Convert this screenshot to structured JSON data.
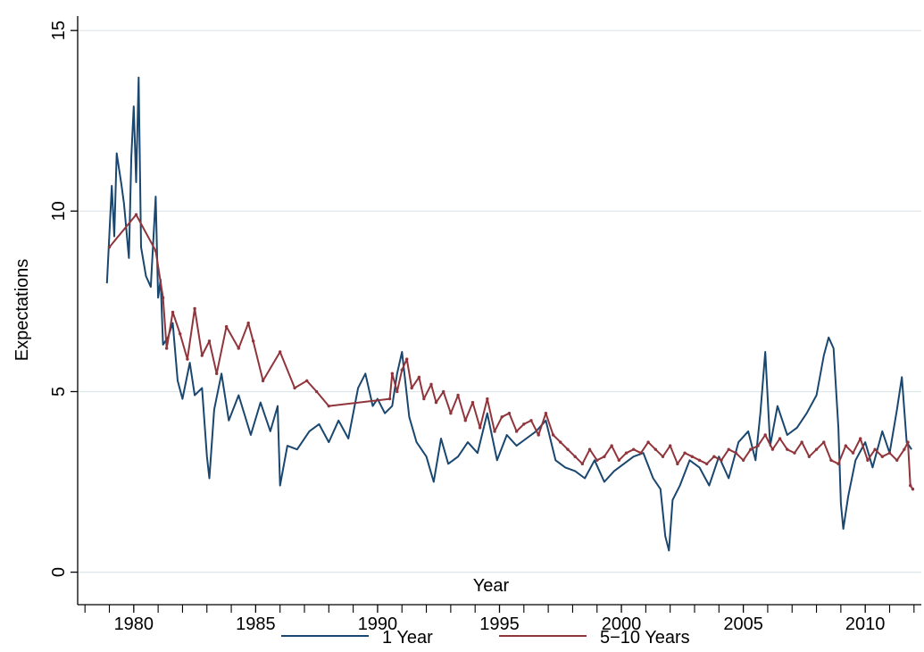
{
  "chart_data": {
    "type": "line",
    "xlabel": "Year",
    "ylabel": "Expectations",
    "xlim": [
      1977.7,
      2012.3
    ],
    "ylim": [
      -0.9,
      15.4
    ],
    "x_ticks": [
      1980,
      1985,
      1990,
      1995,
      2000,
      2005,
      2010
    ],
    "x_tick_labels": [
      "1980",
      "1985",
      "1990",
      "1995",
      "2000",
      "2005",
      "2010"
    ],
    "x_minor_ticks": [
      1978,
      1979,
      1981,
      1982,
      1983,
      1984,
      1986,
      1987,
      1988,
      1989,
      1991,
      1992,
      1993,
      1994,
      1996,
      1997,
      1998,
      1999,
      2001,
      2002,
      2003,
      2004,
      2006,
      2007,
      2008,
      2009,
      2011,
      2012
    ],
    "y_ticks": [
      0,
      5,
      10,
      15
    ],
    "y_tick_labels": [
      "0",
      "5",
      "10",
      "15"
    ],
    "grid": "horizontal",
    "legend_position": "bottom",
    "colors": {
      "one_year": "#1a476f",
      "five_ten_years": "#90353b",
      "grid": "#dde6ea"
    },
    "series": [
      {
        "name": "1 Year",
        "x": [
          1978.9,
          1979.1,
          1979.2,
          1979.3,
          1979.5,
          1979.6,
          1979.8,
          1979.9,
          1980.0,
          1980.1,
          1980.2,
          1980.3,
          1980.5,
          1980.7,
          1980.9,
          1981.0,
          1981.1,
          1981.2,
          1981.4,
          1981.6,
          1981.8,
          1982.0,
          1982.3,
          1982.5,
          1982.8,
          1983.0,
          1983.1,
          1983.3,
          1983.6,
          1983.9,
          1984.3,
          1984.8,
          1985.2,
          1985.6,
          1985.9,
          1986.0,
          1986.3,
          1986.7,
          1987.2,
          1987.6,
          1988.0,
          1988.4,
          1988.8,
          1989.2,
          1989.5,
          1989.8,
          1990.0,
          1990.3,
          1990.6,
          1990.8,
          1991.0,
          1991.3,
          1991.6,
          1992.0,
          1992.3,
          1992.6,
          1992.9,
          1993.3,
          1993.7,
          1994.1,
          1994.5,
          1994.9,
          1995.3,
          1995.7,
          1996.1,
          1996.5,
          1996.9,
          1997.3,
          1997.7,
          1998.1,
          1998.5,
          1998.9,
          1999.3,
          1999.7,
          2000.1,
          2000.5,
          2000.9,
          2001.3,
          2001.6,
          2001.8,
          2001.95,
          2002.1,
          2002.4,
          2002.8,
          2003.2,
          2003.6,
          2004.0,
          2004.4,
          2004.8,
          2005.2,
          2005.5,
          2005.7,
          2005.9,
          2006.1,
          2006.4,
          2006.8,
          2007.2,
          2007.6,
          2008.0,
          2008.3,
          2008.5,
          2008.7,
          2008.9,
          2009.0,
          2009.1,
          2009.3,
          2009.6,
          2010.0,
          2010.3,
          2010.7,
          2011.0,
          2011.3,
          2011.5,
          2011.7,
          2011.9
        ],
        "values": [
          8.0,
          10.7,
          9.3,
          11.6,
          10.7,
          10.2,
          8.7,
          11.5,
          12.9,
          10.8,
          13.7,
          9.0,
          8.2,
          7.9,
          10.4,
          7.6,
          8.1,
          6.3,
          6.5,
          6.9,
          5.3,
          4.8,
          5.8,
          4.9,
          5.1,
          3.2,
          2.6,
          4.5,
          5.5,
          4.2,
          4.9,
          3.8,
          4.7,
          3.9,
          4.6,
          2.4,
          3.5,
          3.4,
          3.9,
          4.1,
          3.6,
          4.2,
          3.7,
          5.1,
          5.5,
          4.6,
          4.8,
          4.4,
          4.6,
          5.5,
          6.1,
          4.3,
          3.6,
          3.2,
          2.5,
          3.7,
          3.0,
          3.2,
          3.6,
          3.3,
          4.4,
          3.1,
          3.8,
          3.5,
          3.7,
          3.9,
          4.2,
          3.1,
          2.9,
          2.8,
          2.6,
          3.1,
          2.5,
          2.8,
          3.0,
          3.2,
          3.3,
          2.6,
          2.3,
          1.0,
          0.6,
          2.0,
          2.4,
          3.1,
          2.9,
          2.4,
          3.2,
          2.6,
          3.6,
          3.9,
          3.1,
          4.4,
          6.1,
          3.5,
          4.6,
          3.8,
          4.0,
          4.4,
          4.9,
          6.0,
          6.5,
          6.2,
          4.0,
          1.9,
          1.2,
          2.1,
          3.1,
          3.6,
          2.9,
          3.9,
          3.3,
          4.5,
          5.4,
          3.6,
          3.4
        ]
      },
      {
        "name": "5−10 Years",
        "x": [
          1979.0,
          1980.1,
          1980.9,
          1981.2,
          1981.35,
          1981.6,
          1981.9,
          1982.2,
          1982.5,
          1982.8,
          1983.1,
          1983.4,
          1983.8,
          1984.3,
          1984.7,
          1984.9,
          1985.3,
          1986.0,
          1986.6,
          1987.1,
          1987.5,
          1988.0,
          1990.5,
          1990.6,
          1990.8,
          1991.0,
          1991.2,
          1991.4,
          1991.7,
          1991.9,
          1992.2,
          1992.4,
          1992.7,
          1993.0,
          1993.3,
          1993.6,
          1993.9,
          1994.2,
          1994.5,
          1994.8,
          1995.1,
          1995.4,
          1995.7,
          1996.0,
          1996.3,
          1996.6,
          1996.9,
          1997.2,
          1997.5,
          1997.8,
          1998.1,
          1998.4,
          1998.7,
          1999.0,
          1999.3,
          1999.6,
          1999.9,
          2000.2,
          2000.5,
          2000.8,
          2001.1,
          2001.4,
          2001.7,
          2002.0,
          2002.3,
          2002.6,
          2002.9,
          2003.2,
          2003.5,
          2003.8,
          2004.1,
          2004.4,
          2004.7,
          2005.0,
          2005.3,
          2005.6,
          2005.9,
          2006.2,
          2006.5,
          2006.8,
          2007.1,
          2007.4,
          2007.7,
          2008.0,
          2008.3,
          2008.6,
          2008.9,
          2009.2,
          2009.5,
          2009.8,
          2010.1,
          2010.4,
          2010.7,
          2011.0,
          2011.3,
          2011.6,
          2011.75,
          2011.85,
          2011.95
        ],
        "values": [
          9.0,
          9.9,
          8.9,
          7.6,
          6.2,
          7.2,
          6.6,
          5.9,
          7.3,
          6.0,
          6.4,
          5.5,
          6.8,
          6.2,
          6.9,
          6.4,
          5.3,
          6.1,
          5.1,
          5.3,
          5.0,
          4.6,
          4.8,
          5.5,
          5.0,
          5.6,
          5.9,
          5.1,
          5.4,
          4.8,
          5.2,
          4.7,
          5.0,
          4.4,
          4.9,
          4.2,
          4.7,
          4.0,
          4.8,
          3.9,
          4.3,
          4.4,
          3.9,
          4.1,
          4.2,
          3.8,
          4.4,
          3.8,
          3.6,
          3.4,
          3.2,
          3.0,
          3.4,
          3.1,
          3.2,
          3.5,
          3.1,
          3.3,
          3.4,
          3.3,
          3.6,
          3.4,
          3.2,
          3.5,
          3.0,
          3.3,
          3.2,
          3.1,
          3.0,
          3.2,
          3.1,
          3.4,
          3.3,
          3.1,
          3.4,
          3.5,
          3.8,
          3.4,
          3.7,
          3.4,
          3.3,
          3.6,
          3.2,
          3.4,
          3.6,
          3.1,
          3.0,
          3.5,
          3.3,
          3.7,
          3.1,
          3.4,
          3.2,
          3.3,
          3.1,
          3.4,
          3.6,
          2.4,
          2.3
        ]
      }
    ]
  }
}
